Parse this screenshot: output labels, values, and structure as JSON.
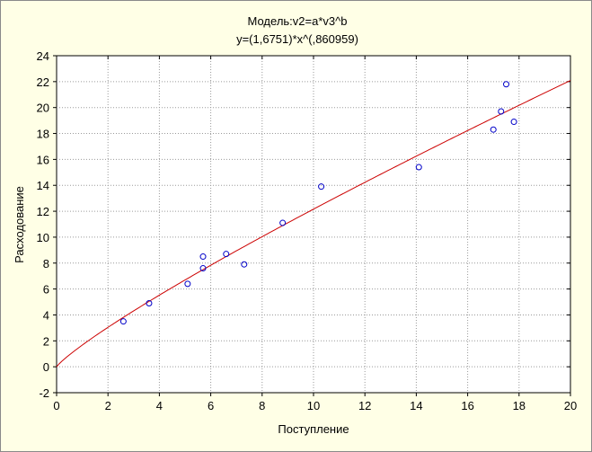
{
  "chart_data": {
    "type": "scatter",
    "title": "Модель:v2=a*v3^b",
    "subtitle": "y=(1,6751)*x^(,860959)",
    "xlabel": "Поступление",
    "ylabel": "Расходование",
    "xlim": [
      0,
      20
    ],
    "ylim": [
      -2,
      24
    ],
    "x_ticks": [
      "0",
      "2",
      "4",
      "6",
      "8",
      "10",
      "12",
      "14",
      "16",
      "18",
      "20"
    ],
    "y_ticks": [
      "-2",
      "0",
      "2",
      "4",
      "6",
      "8",
      "10",
      "12",
      "14",
      "16",
      "18",
      "20",
      "22",
      "24"
    ],
    "grid": true,
    "points": [
      {
        "x": 2.6,
        "y": 3.5
      },
      {
        "x": 3.6,
        "y": 4.9
      },
      {
        "x": 5.1,
        "y": 6.4
      },
      {
        "x": 5.7,
        "y": 7.6
      },
      {
        "x": 5.7,
        "y": 8.5
      },
      {
        "x": 6.6,
        "y": 8.7
      },
      {
        "x": 7.3,
        "y": 7.9
      },
      {
        "x": 8.8,
        "y": 11.1
      },
      {
        "x": 10.3,
        "y": 13.9
      },
      {
        "x": 14.1,
        "y": 15.4
      },
      {
        "x": 17.0,
        "y": 18.3
      },
      {
        "x": 17.3,
        "y": 19.7
      },
      {
        "x": 17.5,
        "y": 21.8
      },
      {
        "x": 17.8,
        "y": 18.9
      }
    ],
    "fit": {
      "a": 1.6751,
      "b": 0.860959
    },
    "colors": {
      "points": "#0000c8",
      "fit": "#cc0000",
      "grid": "#9a9a9a",
      "plot_bg": "#ffffff",
      "frame_bg": "#ffffe6"
    }
  }
}
